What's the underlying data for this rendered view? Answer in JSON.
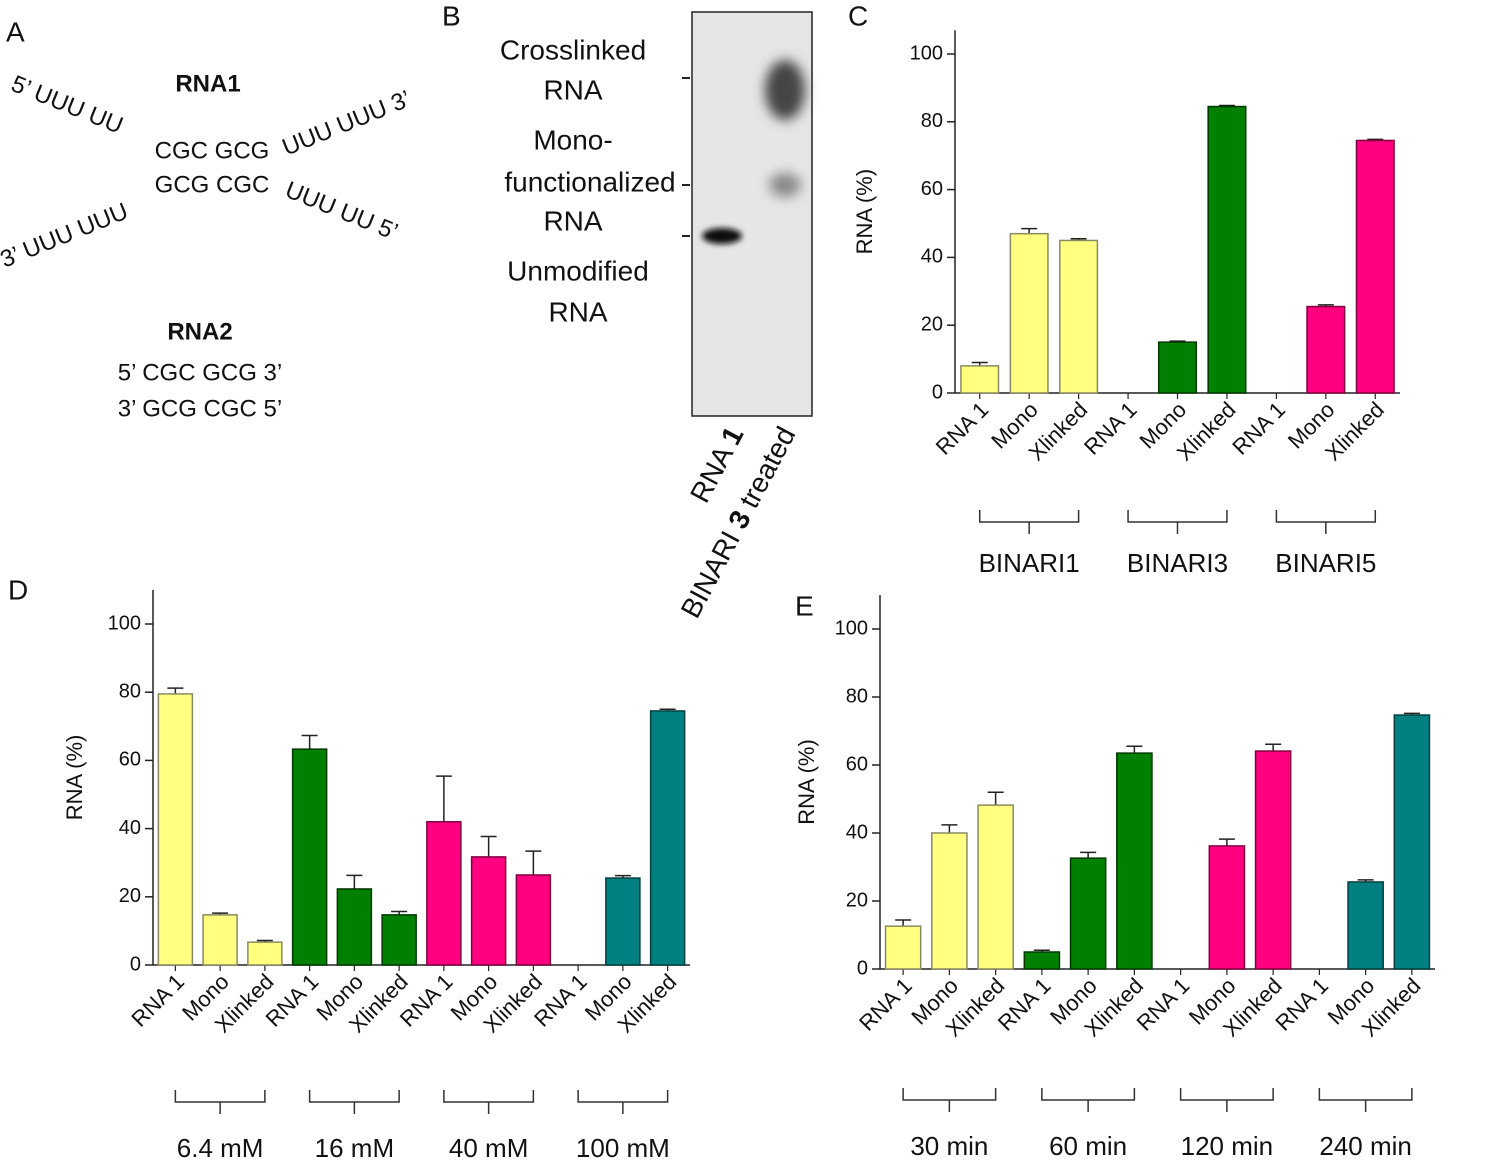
{
  "panel_a": {
    "label": "A",
    "rna1": {
      "title": "RNA1",
      "top": [
        "5’ UUU UU",
        "CGC GCG",
        "UUU UUU 3’"
      ],
      "bottom": [
        "3’ UUU UUU",
        "GCG CGC",
        "UUU UU 5’"
      ]
    },
    "rna2": {
      "title": "RNA2",
      "lines": [
        "5’ CGC GCG 3’",
        "3’ GCG CGC 5’"
      ]
    }
  },
  "panel_b": {
    "label": "B",
    "labels": [
      [
        "Crosslinked",
        "RNA"
      ],
      [
        "Mono-",
        "functionalized",
        "RNA"
      ],
      [
        "Unmodified",
        "RNA"
      ]
    ],
    "lanes": [
      [
        "RNA ",
        "1"
      ],
      [
        "BINARI ",
        "3",
        " treated"
      ]
    ]
  },
  "chart_data": [
    {
      "panel_label": "C",
      "type": "bar",
      "y_label": "RNA (%)",
      "categories": [
        "RNA 1",
        "Mono",
        "Xlinked",
        "RNA 1",
        "Mono",
        "Xlinked",
        "RNA 1",
        "Mono",
        "Xlinked"
      ],
      "groups": [
        "BINARI1",
        "BINARI3",
        "BINARI5"
      ],
      "group_colors": [
        "#ffff80",
        "#008000",
        "#ff0080"
      ],
      "values": [
        8,
        47,
        45,
        null,
        15,
        84.5,
        null,
        25.5,
        74.5
      ],
      "errors": [
        1,
        1.5,
        0.5,
        null,
        0.3,
        0.3,
        null,
        0.5,
        0.3
      ],
      "ylim": [
        0,
        107
      ],
      "yticks": [
        0,
        20,
        40,
        60,
        80,
        100
      ]
    },
    {
      "panel_label": "D",
      "type": "bar",
      "y_label": "RNA (%)",
      "categories": [
        "RNA 1",
        "Mono",
        "Xlinked",
        "RNA 1",
        "Mono",
        "Xlinked",
        "RNA 1",
        "Mono",
        "Xlinked",
        "RNA 1",
        "Mono",
        "Xlinked"
      ],
      "groups": [
        "6.4 mM",
        "16 mM",
        "40 mM",
        "100 mM"
      ],
      "group_colors": [
        "#ffff80",
        "#008000",
        "#ff0080",
        "#008080"
      ],
      "values": [
        79.5,
        14.7,
        6.7,
        63.3,
        22.3,
        14.7,
        42,
        31.7,
        26.4,
        null,
        25.5,
        74.5
      ],
      "errors": [
        1.7,
        0.5,
        0.5,
        4,
        4,
        1,
        13.4,
        6,
        7,
        null,
        0.7,
        0.5
      ],
      "ylim": [
        0,
        110
      ],
      "yticks": [
        0,
        20,
        40,
        60,
        80,
        100
      ]
    },
    {
      "panel_label": "E",
      "type": "bar",
      "y_label": "RNA (%)",
      "categories": [
        "RNA 1",
        "Mono",
        "Xlinked",
        "RNA 1",
        "Mono",
        "Xlinked",
        "RNA 1",
        "Mono",
        "Xlinked",
        "RNA 1",
        "Mono",
        "Xlinked"
      ],
      "groups": [
        "30 min",
        "60 min",
        "120 min",
        "240 min"
      ],
      "group_colors": [
        "#ffff80",
        "#008000",
        "#ff0080",
        "#008080"
      ],
      "values": [
        12.6,
        40,
        48.2,
        5,
        32.6,
        63.5,
        null,
        36.2,
        64.1,
        null,
        25.6,
        74.7
      ],
      "errors": [
        1.8,
        2.4,
        3.8,
        0.5,
        1.7,
        2,
        null,
        2,
        2,
        null,
        0.6,
        0.5
      ],
      "ylim": [
        0,
        110
      ],
      "yticks": [
        0,
        20,
        40,
        60,
        80,
        100
      ]
    }
  ]
}
